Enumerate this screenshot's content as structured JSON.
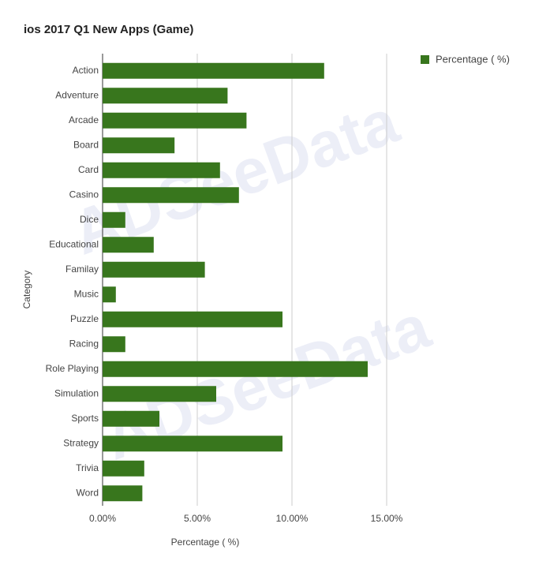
{
  "chart_data": {
    "type": "bar",
    "orientation": "horizontal",
    "title": "ios 2017 Q1 New Apps (Game)",
    "x_label": "Percentage ( %)",
    "y_label": "Category",
    "watermark": "ADSeeData",
    "categories": [
      "Action",
      "Adventure",
      "Arcade",
      "Board",
      "Card",
      "Casino",
      "Dice",
      "Educational",
      "Familay",
      "Music",
      "Puzzle",
      "Racing",
      "Role Playing",
      "Simulation",
      "Sports",
      "Strategy",
      "Trivia",
      "Word"
    ],
    "series": [
      {
        "name": "Percentage ( %)",
        "color": "#38761d",
        "values": [
          11.7,
          6.6,
          7.6,
          3.8,
          6.2,
          7.2,
          1.2,
          2.7,
          5.4,
          0.7,
          9.5,
          1.2,
          14.0,
          6.0,
          3.0,
          9.5,
          2.2,
          2.1
        ]
      }
    ],
    "xlim": [
      0,
      15
    ],
    "xticks": [
      {
        "value": 0,
        "label": "0.00%"
      },
      {
        "value": 5,
        "label": "5.00%"
      },
      {
        "value": 10,
        "label": "10.00%"
      },
      {
        "value": 15,
        "label": "15.00%"
      }
    ],
    "grid": true,
    "legend": "top-right"
  }
}
